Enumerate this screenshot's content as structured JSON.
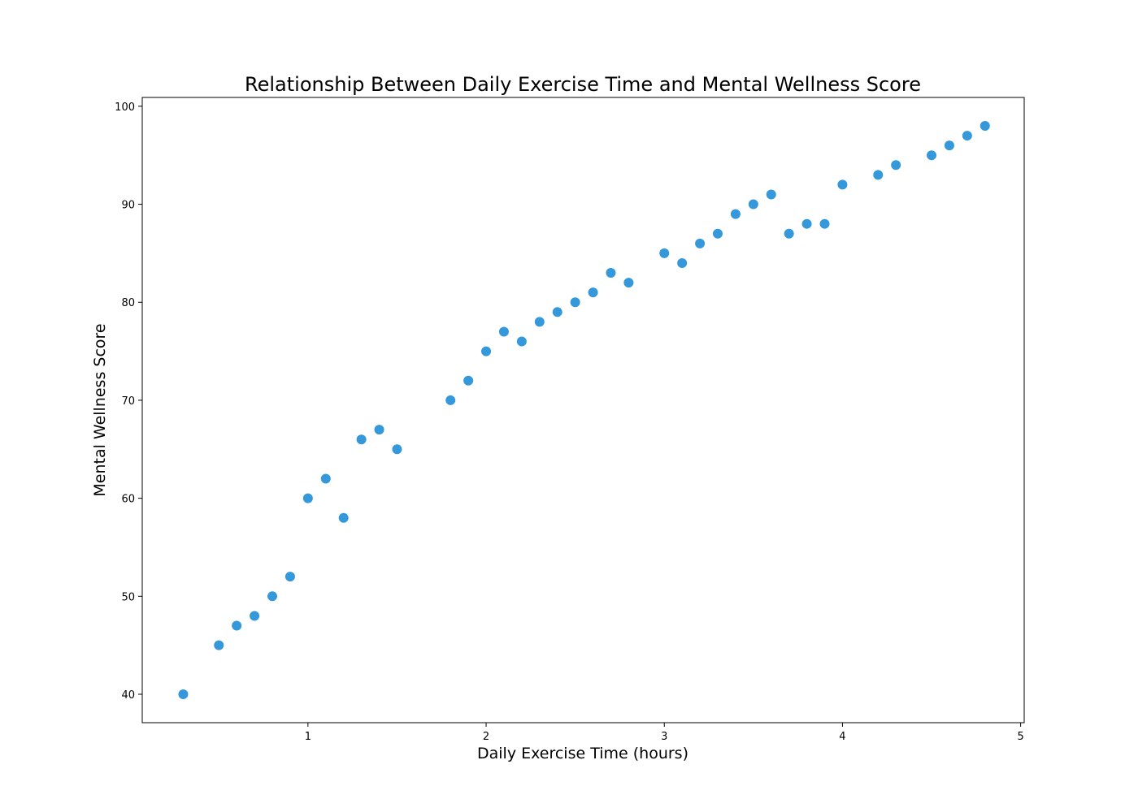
{
  "chart_data": {
    "type": "scatter",
    "title": "Relationship Between Daily Exercise Time and Mental Wellness Score",
    "xlabel": "Daily Exercise Time (hours)",
    "ylabel": "Mental Wellness Score",
    "xlim": [
      0.07,
      5.02
    ],
    "ylim": [
      37.1,
      100.9
    ],
    "xticks": [
      1,
      2,
      3,
      4,
      5
    ],
    "yticks": [
      40,
      50,
      60,
      70,
      80,
      90,
      100
    ],
    "xtick_labels": [
      "1",
      "2",
      "3",
      "4",
      "5"
    ],
    "ytick_labels": [
      "40",
      "50",
      "60",
      "70",
      "80",
      "90",
      "100"
    ],
    "grid": false,
    "marker_color": "#3498db",
    "points": [
      {
        "x": 0.3,
        "y": 40
      },
      {
        "x": 0.5,
        "y": 45
      },
      {
        "x": 0.6,
        "y": 47
      },
      {
        "x": 0.7,
        "y": 48
      },
      {
        "x": 0.8,
        "y": 50
      },
      {
        "x": 0.9,
        "y": 52
      },
      {
        "x": 1.0,
        "y": 60
      },
      {
        "x": 1.1,
        "y": 62
      },
      {
        "x": 1.2,
        "y": 58
      },
      {
        "x": 1.3,
        "y": 66
      },
      {
        "x": 1.4,
        "y": 67
      },
      {
        "x": 1.5,
        "y": 65
      },
      {
        "x": 1.8,
        "y": 70
      },
      {
        "x": 1.9,
        "y": 72
      },
      {
        "x": 2.0,
        "y": 75
      },
      {
        "x": 2.1,
        "y": 77
      },
      {
        "x": 2.2,
        "y": 76
      },
      {
        "x": 2.3,
        "y": 78
      },
      {
        "x": 2.4,
        "y": 79
      },
      {
        "x": 2.5,
        "y": 80
      },
      {
        "x": 2.6,
        "y": 81
      },
      {
        "x": 2.7,
        "y": 83
      },
      {
        "x": 2.8,
        "y": 82
      },
      {
        "x": 3.0,
        "y": 85
      },
      {
        "x": 3.1,
        "y": 84
      },
      {
        "x": 3.2,
        "y": 86
      },
      {
        "x": 3.3,
        "y": 87
      },
      {
        "x": 3.4,
        "y": 89
      },
      {
        "x": 3.5,
        "y": 90
      },
      {
        "x": 3.6,
        "y": 91
      },
      {
        "x": 3.7,
        "y": 87
      },
      {
        "x": 3.8,
        "y": 88
      },
      {
        "x": 3.9,
        "y": 88
      },
      {
        "x": 4.0,
        "y": 92
      },
      {
        "x": 4.2,
        "y": 93
      },
      {
        "x": 4.3,
        "y": 94
      },
      {
        "x": 4.5,
        "y": 95
      },
      {
        "x": 4.6,
        "y": 96
      },
      {
        "x": 4.7,
        "y": 97
      },
      {
        "x": 4.8,
        "y": 98
      }
    ]
  }
}
